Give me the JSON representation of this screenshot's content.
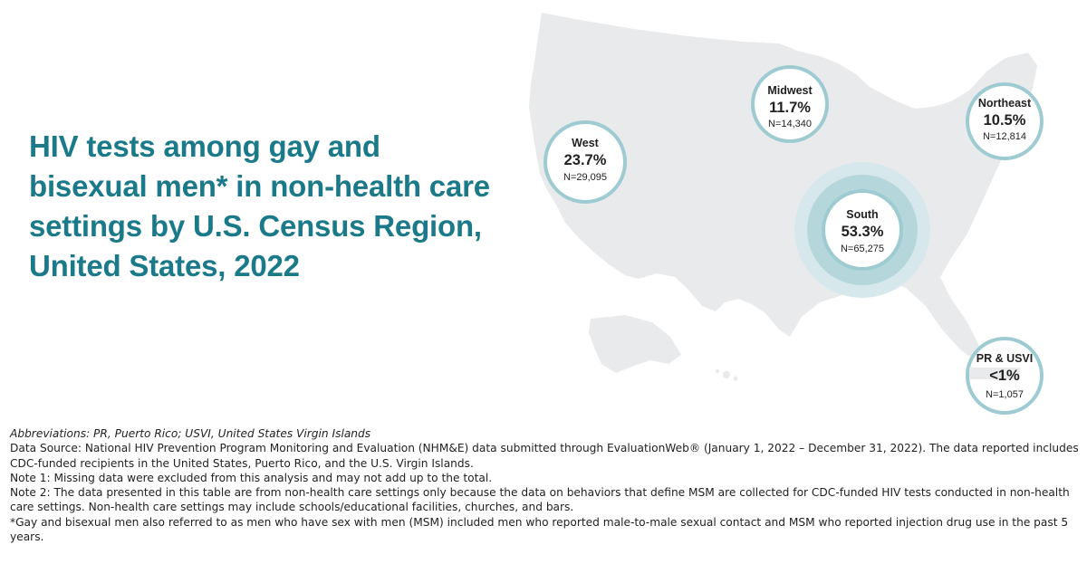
{
  "title": "HIV tests among gay and bisexual men* in non-health care settings by U.S. Census Region, United States, 2022",
  "colors": {
    "title": "#1b7a8a",
    "map_fill": "#e9eaeb",
    "ring": "#9ecbd2",
    "ring_light": "#d6e8eb",
    "ring_mid": "#b5d7dc"
  },
  "regions": [
    {
      "name": "West",
      "percent_label": "23.7%",
      "percent_value": 23.7,
      "n_label": "N=29,095"
    },
    {
      "name": "Midwest",
      "percent_label": "11.7%",
      "percent_value": 11.7,
      "n_label": "N=14,340"
    },
    {
      "name": "Northeast",
      "percent_label": "10.5%",
      "percent_value": 10.5,
      "n_label": "N=12,814"
    },
    {
      "name": "South",
      "percent_label": "53.3%",
      "percent_value": 53.3,
      "n_label": "N=65,275"
    },
    {
      "name": "PR & USVI",
      "percent_label": "<1%",
      "percent_value": 0.9,
      "n_label": "N=1,057"
    }
  ],
  "footnotes": {
    "abbreviations": "Abbreviations: PR, Puerto Rico; USVI, United States Virgin Islands",
    "source": "Data Source: National HIV Prevention Program Monitoring and Evaluation (NHM&E) data submitted through EvaluationWeb® (January 1, 2022 – December 31, 2022). The data reported includes CDC-funded recipients in the United States, Puerto Rico, and the U.S. Virgin Islands.",
    "note1": "Note 1: Missing data were excluded from this analysis and may not add up to the total.",
    "note2": "Note 2: The data presented in this table are from non-health care settings only because the data on behaviors that define MSM are collected for CDC-funded HIV tests conducted in non-health care settings. Non-health care settings may include schools/educational facilities, churches, and bars.",
    "asterisk": "*Gay and bisexual men also referred to as men who have sex with men (MSM) included men who reported male-to-male sexual contact and MSM who reported injection drug use in the past 5 years."
  }
}
